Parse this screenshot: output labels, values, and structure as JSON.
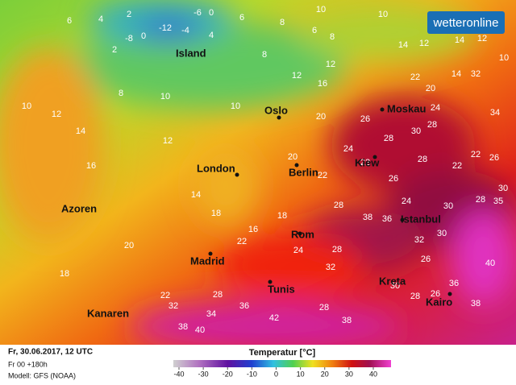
{
  "brand": "wetteronline",
  "cities": [
    "Island",
    "Oslo",
    "Moskau",
    "London",
    "Berlin",
    "Kiew",
    "Azoren",
    "Istanbul",
    "Rom",
    "Madrid",
    "Kreta",
    "Tunis",
    "Kairo",
    "Kanaren"
  ],
  "temperature_labels": [
    6,
    4,
    2,
    -6,
    0,
    -8,
    0,
    -12,
    -4,
    2,
    4,
    6,
    8,
    10,
    6,
    8,
    10,
    14,
    12,
    14,
    12,
    10,
    10,
    12,
    8,
    10,
    10,
    8,
    12,
    16,
    12,
    22,
    20,
    14,
    32,
    14,
    12,
    16,
    14,
    18,
    20,
    18,
    22,
    32,
    34,
    36,
    38,
    40,
    42,
    38,
    28,
    28,
    24,
    22,
    16,
    18,
    28,
    38,
    36,
    32,
    30,
    26,
    28,
    32,
    30,
    28,
    26,
    36,
    38,
    40,
    34,
    24,
    30,
    28,
    26,
    28,
    22,
    26,
    28,
    22,
    22,
    26,
    30,
    28,
    35,
    24,
    30,
    20,
    22,
    20,
    24
  ],
  "footer": {
    "date": "Fr, 30.06.2017, 12 UTC",
    "run": "Fr 00 +180h",
    "model": "Modell: GFS (NOAA)"
  },
  "legend": {
    "title": "Temperatur [°C]",
    "ticks": [
      -40,
      -30,
      -20,
      -10,
      0,
      10,
      20,
      30,
      40
    ]
  }
}
